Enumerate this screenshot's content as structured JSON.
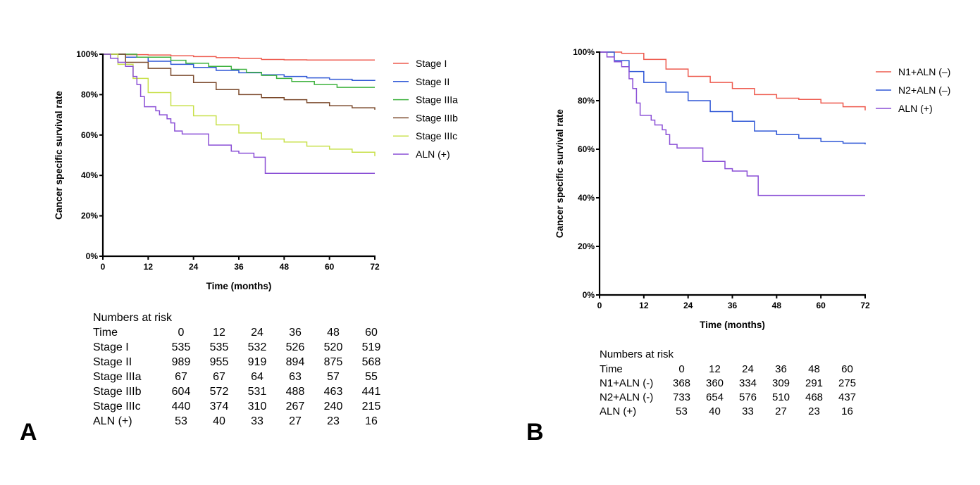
{
  "panels": [
    {
      "label": "A",
      "chart_data": {
        "type": "line",
        "xlabel": "Time (months)",
        "ylabel": "Cancer specific survival rate",
        "xlim": [
          0,
          72
        ],
        "ylim": [
          0,
          100
        ],
        "xticks": [
          0,
          12,
          24,
          36,
          48,
          60,
          72
        ],
        "yticks": [
          0,
          20,
          40,
          60,
          80,
          100
        ],
        "ytick_labels": [
          "0%",
          "20%",
          "40%",
          "60%",
          "80%",
          "100%"
        ],
        "legend_position": "right",
        "series": [
          {
            "name": "Stage I",
            "color": "#ee5b4f",
            "x": [
              0,
              6,
              12,
              18,
              24,
              30,
              36,
              42,
              48,
              54,
              60,
              66,
              72
            ],
            "y": [
              100,
              99.8,
              99.6,
              99.2,
              98.8,
              98.3,
              97.9,
              97.4,
              97.2,
              97.1,
              97.1,
              97.1,
              97.1
            ]
          },
          {
            "name": "Stage II",
            "color": "#2f57d6",
            "x": [
              0,
              6,
              12,
              18,
              24,
              30,
              36,
              42,
              48,
              54,
              60,
              66,
              72
            ],
            "y": [
              100,
              98.5,
              96.5,
              95,
              93.5,
              92,
              90.8,
              89.8,
              89,
              88.3,
              87.6,
              87,
              86.8
            ]
          },
          {
            "name": "Stage IIIa",
            "color": "#3fb23f",
            "x": [
              0,
              6,
              9,
              12,
              18,
              22,
              28,
              34,
              38,
              42,
              46,
              50,
              56,
              62,
              68,
              72
            ],
            "y": [
              100,
              100,
              98.5,
              98.5,
              97,
              95.5,
              94,
              92.5,
              91,
              89.5,
              88,
              86.5,
              85,
              83.6,
              83.6,
              83.6
            ]
          },
          {
            "name": "Stage IIIb",
            "color": "#7b4a2c",
            "x": [
              0,
              6,
              12,
              18,
              24,
              30,
              36,
              42,
              48,
              54,
              60,
              66,
              72
            ],
            "y": [
              100,
              96,
              93,
              89.5,
              86,
              82.5,
              80,
              78.5,
              77.5,
              76,
              74.5,
              73.5,
              72.5
            ]
          },
          {
            "name": "Stage IIIc",
            "color": "#c8e04a",
            "x": [
              0,
              4,
              8,
              12,
              18,
              24,
              30,
              36,
              42,
              48,
              54,
              60,
              66,
              72
            ],
            "y": [
              100,
              95,
              88,
              81,
              74.5,
              69.5,
              65,
              61,
              58,
              56.5,
              54.5,
              53,
              51.5,
              49.5
            ]
          },
          {
            "name": "ALN (+)",
            "color": "#8a4fd6",
            "x": [
              0,
              2,
              4,
              6,
              8,
              9,
              10,
              11,
              13,
              14,
              15,
              17,
              18,
              19,
              21,
              28,
              34,
              36,
              40,
              43,
              72
            ],
            "y": [
              100,
              98,
              96,
              94,
              89,
              85,
              79,
              74,
              74,
              72,
              70,
              68,
              66,
              62,
              60.5,
              55,
              52,
              51,
              49,
              41,
              41
            ]
          }
        ]
      },
      "risk": {
        "title": "Numbers at risk",
        "time_label": "Time",
        "times": [
          "0",
          "12",
          "24",
          "36",
          "48",
          "60"
        ],
        "rows": [
          {
            "name": "Stage I",
            "values": [
              "535",
              "535",
              "532",
              "526",
              "520",
              "519"
            ]
          },
          {
            "name": "Stage II",
            "values": [
              "989",
              "955",
              "919",
              "894",
              "875",
              "568"
            ]
          },
          {
            "name": "Stage IIIa",
            "values": [
              "67",
              "67",
              "64",
              "63",
              "57",
              "55"
            ]
          },
          {
            "name": "Stage IIIb",
            "values": [
              "604",
              "572",
              "531",
              "488",
              "463",
              "441"
            ]
          },
          {
            "name": "Stage IIIc",
            "values": [
              "440",
              "374",
              "310",
              "267",
              "240",
              "215"
            ]
          },
          {
            "name": "ALN (+)",
            "values": [
              "53",
              "40",
              "33",
              "27",
              "23",
              "16"
            ]
          }
        ]
      }
    },
    {
      "label": "B",
      "chart_data": {
        "type": "line",
        "xlabel": "Time (months)",
        "ylabel": "Cancer specific survival rate",
        "xlim": [
          0,
          72
        ],
        "ylim": [
          0,
          100
        ],
        "xticks": [
          0,
          12,
          24,
          36,
          48,
          60,
          72
        ],
        "yticks": [
          0,
          20,
          40,
          60,
          80,
          100
        ],
        "ytick_labels": [
          "0%",
          "20%",
          "40%",
          "60%",
          "80%",
          "100%"
        ],
        "legend_position": "right",
        "series": [
          {
            "name": "N1+ALN (–)",
            "color": "#ee5b4f",
            "x": [
              0,
              6,
              12,
              18,
              24,
              30,
              36,
              42,
              48,
              54,
              60,
              66,
              72
            ],
            "y": [
              100,
              99.5,
              97,
              93,
              90,
              87.5,
              85,
              82.5,
              81,
              80.5,
              79,
              77.5,
              76
            ]
          },
          {
            "name": "N2+ALN (–)",
            "color": "#2f57d6",
            "x": [
              0,
              4,
              8,
              12,
              18,
              24,
              30,
              36,
              42,
              48,
              54,
              60,
              66,
              72
            ],
            "y": [
              100,
              96.5,
              92,
              87.5,
              83.5,
              80,
              75.5,
              71.5,
              67.5,
              66,
              64.5,
              63.2,
              62.5,
              62
            ]
          },
          {
            "name": "ALN (+)",
            "color": "#8a4fd6",
            "x": [
              0,
              2,
              4,
              6,
              8,
              9,
              10,
              11,
              13,
              14,
              15,
              17,
              18,
              19,
              21,
              28,
              34,
              36,
              40,
              43,
              72
            ],
            "y": [
              100,
              98,
              96,
              94,
              89,
              85,
              79,
              74,
              74,
              72,
              70,
              68,
              66,
              62,
              60.5,
              55,
              52,
              51,
              49,
              41,
              41
            ]
          }
        ]
      },
      "risk": {
        "title": "Numbers at risk",
        "time_label": "Time",
        "times": [
          "0",
          "12",
          "24",
          "36",
          "48",
          "60"
        ],
        "rows": [
          {
            "name": "N1+ALN (-)",
            "values": [
              "368",
              "360",
              "334",
              "309",
              "291",
              "275"
            ]
          },
          {
            "name": "N2+ALN (-)",
            "values": [
              "733",
              "654",
              "576",
              "510",
              "468",
              "437"
            ]
          },
          {
            "name": "ALN (+)",
            "values": [
              "53",
              "40",
              "33",
              "27",
              "23",
              "16"
            ]
          }
        ]
      }
    }
  ]
}
